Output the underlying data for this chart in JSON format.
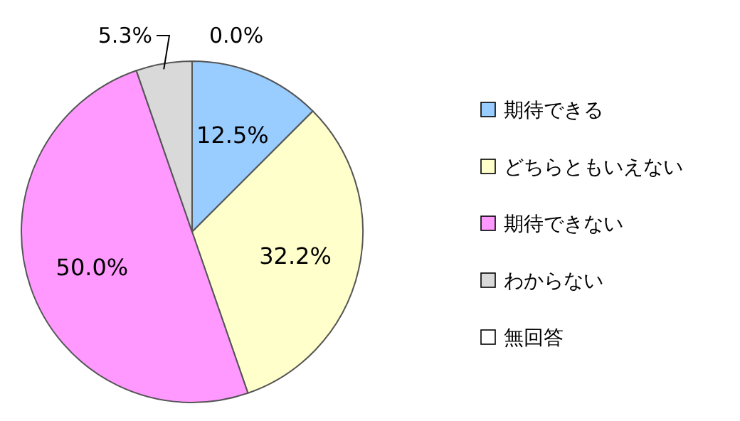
{
  "chart_data": {
    "type": "pie",
    "categories": [
      "期待できる",
      "どちらともいえない",
      "期待できない",
      "わからない",
      "無回答"
    ],
    "values": [
      12.5,
      32.2,
      50.0,
      5.3,
      0.0
    ],
    "value_labels": [
      "12.5%",
      "32.2%",
      "50.0%",
      "5.3%",
      "0.0%"
    ],
    "colors": [
      "#99ccff",
      "#ffffcc",
      "#ff99ff",
      "#d9d9d9",
      "#ffffff"
    ],
    "legend": "right"
  }
}
